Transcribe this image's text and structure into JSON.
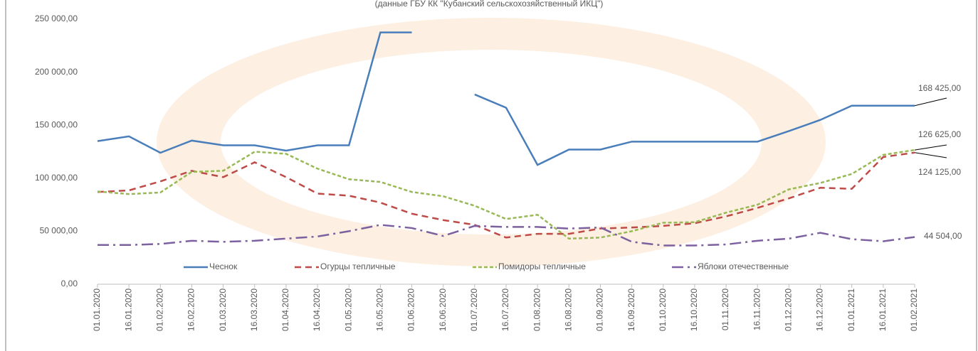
{
  "chart_data": {
    "type": "line",
    "title": "(данные ГБУ КК \"Кубанский сельскохозяйственный ИКЦ\")",
    "categories": [
      "01.01.2020",
      "16.01.2020",
      "01.02.2020",
      "16.02.2020",
      "01.03.2020",
      "16.03.2020",
      "01.04.2020",
      "16.04.2020",
      "01.05.2020",
      "16.05.2020",
      "01.06.2020",
      "16.06.2020",
      "01.07.2020",
      "16.07.2020",
      "01.08.2020",
      "16.08.2020",
      "01.09.2020",
      "16.09.2020",
      "01.10.2020",
      "16.10.2020",
      "01.11.2020",
      "16.11.2020",
      "01.12.2020",
      "16.12.2020",
      "01.01.2021",
      "16.01.2021",
      "01.02.2021"
    ],
    "series": [
      {
        "name": "Чеснок",
        "color": "#4a7ebb",
        "dash": "solid",
        "values": [
          135000,
          139500,
          124000,
          135500,
          131000,
          131000,
          126000,
          131000,
          131000,
          237500,
          237500,
          null,
          179000,
          166500,
          112500,
          127000,
          127000,
          134500,
          134500,
          134500,
          134500,
          134500,
          144500,
          155000,
          168425,
          168425,
          168425
        ],
        "value_labels": [
          null,
          null,
          null,
          null,
          null,
          null,
          null,
          null,
          null,
          null,
          null,
          null,
          null,
          null,
          null,
          null,
          null,
          null,
          null,
          null,
          null,
          null,
          null,
          null,
          null,
          null,
          "168 425,00"
        ]
      },
      {
        "name": "Огурцы тепличные",
        "color": "#be4b48",
        "dash": "dashed",
        "values": [
          87000,
          88500,
          97000,
          107000,
          101000,
          115000,
          101000,
          85500,
          83500,
          77000,
          66500,
          60500,
          56000,
          44000,
          47500,
          47500,
          52500,
          53500,
          55000,
          57500,
          64000,
          72000,
          81000,
          91000,
          90000,
          120000,
          124125
        ],
        "value_labels": [
          null,
          null,
          null,
          null,
          null,
          null,
          null,
          null,
          null,
          null,
          null,
          null,
          null,
          null,
          null,
          null,
          null,
          null,
          null,
          null,
          null,
          null,
          null,
          null,
          null,
          null,
          "124 125,00"
        ]
      },
      {
        "name": "Помидоры тепличные",
        "color": "#98b954",
        "dash": "dotted",
        "values": [
          87500,
          85000,
          86500,
          106000,
          107000,
          125000,
          123000,
          109000,
          99000,
          96500,
          87000,
          83000,
          74000,
          61500,
          65500,
          43000,
          44000,
          50000,
          58000,
          58500,
          67500,
          75000,
          89500,
          95500,
          104000,
          122000,
          126625
        ],
        "value_labels": [
          null,
          null,
          null,
          null,
          null,
          null,
          null,
          null,
          null,
          null,
          null,
          null,
          null,
          null,
          null,
          null,
          null,
          null,
          null,
          null,
          null,
          null,
          null,
          null,
          null,
          null,
          "126 625,00"
        ]
      },
      {
        "name": "Яблоки отечественные",
        "color": "#7d60a0",
        "dash": "longdash",
        "values": [
          37000,
          37000,
          38000,
          41000,
          40000,
          41000,
          43000,
          45000,
          50000,
          56000,
          53000,
          45500,
          55000,
          54000,
          54000,
          52500,
          53500,
          40000,
          36500,
          36500,
          37500,
          41000,
          43000,
          48500,
          42500,
          40500,
          44504
        ],
        "value_labels": [
          null,
          null,
          null,
          null,
          null,
          null,
          null,
          null,
          null,
          null,
          null,
          null,
          null,
          null,
          null,
          null,
          null,
          null,
          null,
          null,
          null,
          null,
          null,
          null,
          null,
          null,
          "44 504,00"
        ]
      }
    ],
    "ylim": [
      0,
      250000
    ],
    "yticks": [
      {
        "value": 0,
        "label": "0,00"
      },
      {
        "value": 50000,
        "label": "50 000,00"
      },
      {
        "value": 100000,
        "label": "100 000,00"
      },
      {
        "value": 150000,
        "label": "150 000,00"
      },
      {
        "value": 200000,
        "label": "200 000,00"
      },
      {
        "value": 250000,
        "label": "250 000,00"
      }
    ],
    "grid": false,
    "legend": "bottom-inside"
  }
}
